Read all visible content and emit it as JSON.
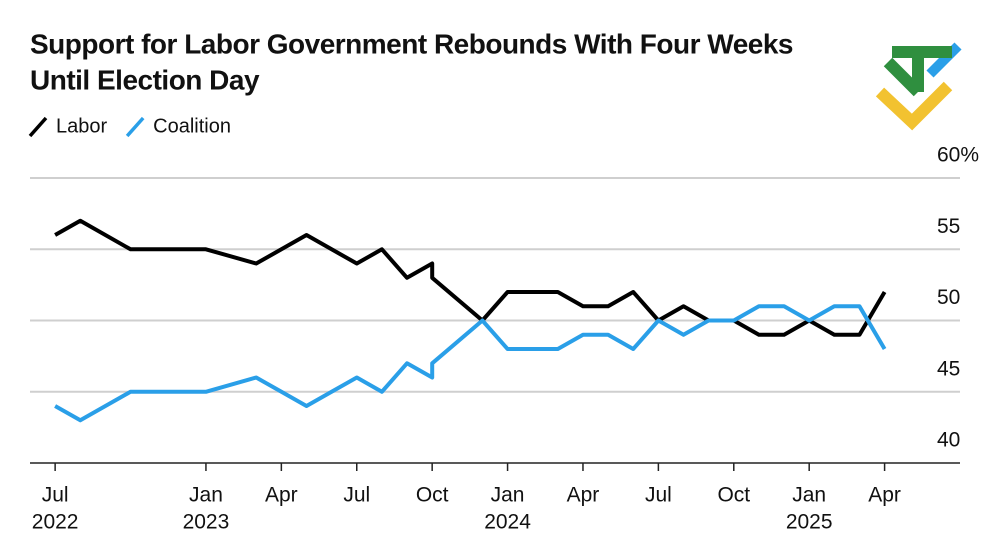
{
  "chart_data": {
    "type": "line",
    "title": "Support for Labor Government Rebounds With Four Weeks",
    "title_line2": "Until Election Day",
    "x": [
      "2022-07",
      "2022-08",
      "2022-10",
      "2023-01",
      "2023-03",
      "2023-04",
      "2023-05",
      "2023-06",
      "2023-07",
      "2023-08",
      "2023-09",
      "2023-10",
      "2023-10",
      "2023-12",
      "2024-01",
      "2024-02",
      "2024-03",
      "2024-04",
      "2024-05",
      "2024-06",
      "2024-07",
      "2024-08",
      "2024-09",
      "2024-10",
      "2024-11",
      "2024-12",
      "2025-01",
      "2025-02",
      "2025-03",
      "2025-04"
    ],
    "series": [
      {
        "name": "Labor",
        "color": "#000000",
        "values": [
          56,
          57,
          55,
          55,
          54,
          55,
          56,
          55,
          54,
          55,
          53,
          54,
          53,
          50,
          52,
          52,
          52,
          51,
          51,
          52,
          50,
          51,
          50,
          50,
          49,
          49,
          50,
          49,
          49,
          52
        ]
      },
      {
        "name": "Coalition",
        "color": "#2a9fe8",
        "values": [
          44,
          43,
          45,
          45,
          46,
          45,
          44,
          45,
          46,
          45,
          47,
          46,
          47,
          50,
          48,
          48,
          48,
          49,
          49,
          48,
          50,
          49,
          50,
          50,
          51,
          51,
          50,
          51,
          51,
          48
        ]
      }
    ],
    "xlim": [
      "2022-06",
      "2025-07"
    ],
    "xticks": [
      {
        "value": "2022-07",
        "label": "Jul"
      },
      {
        "value": "2023-01",
        "label": "Jan"
      },
      {
        "value": "2023-04",
        "label": "Apr"
      },
      {
        "value": "2023-07",
        "label": "Jul"
      },
      {
        "value": "2023-10",
        "label": "Oct"
      },
      {
        "value": "2024-01",
        "label": "Jan"
      },
      {
        "value": "2024-04",
        "label": "Apr"
      },
      {
        "value": "2024-07",
        "label": "Jul"
      },
      {
        "value": "2024-10",
        "label": "Oct"
      },
      {
        "value": "2025-01",
        "label": "Jan"
      },
      {
        "value": "2025-04",
        "label": "Apr"
      }
    ],
    "xtick_years": [
      {
        "value": "2022-07",
        "label": "2022"
      },
      {
        "value": "2023-01",
        "label": "2023"
      },
      {
        "value": "2024-01",
        "label": "2024"
      },
      {
        "value": "2025-01",
        "label": "2025"
      }
    ],
    "ylim": [
      40,
      60
    ],
    "yticks": [
      40,
      45,
      50,
      55,
      {
        "value": 60,
        "label": "60%"
      }
    ],
    "grid": true
  }
}
